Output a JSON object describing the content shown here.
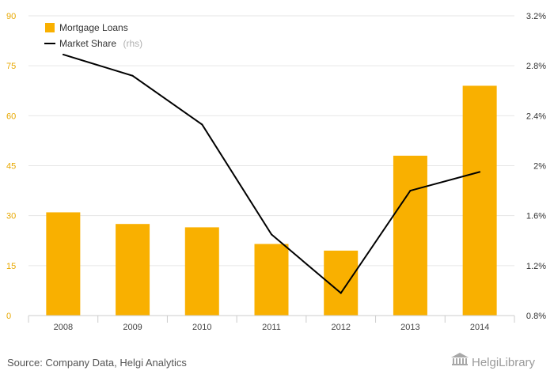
{
  "chart_data": {
    "type": "bar",
    "categories": [
      "2008",
      "2009",
      "2010",
      "2011",
      "2012",
      "2013",
      "2014"
    ],
    "series": [
      {
        "name": "Mortgage Loans",
        "type": "bar",
        "axis": "left",
        "color": "#f9b000",
        "values": [
          31,
          27.5,
          26.5,
          21.5,
          19.5,
          48,
          69
        ]
      },
      {
        "name": "Market Share",
        "type": "line",
        "axis": "right",
        "color": "#000000",
        "values": [
          2.89,
          2.72,
          2.33,
          1.45,
          0.98,
          1.8,
          1.95
        ]
      }
    ],
    "left_axis": {
      "min": 0,
      "max": 90,
      "ticks": [
        0,
        15,
        30,
        45,
        60,
        75,
        90
      ],
      "tick_labels": [
        "0",
        "15",
        "30",
        "45",
        "60",
        "75",
        "90"
      ]
    },
    "right_axis": {
      "min": 0.8,
      "max": 3.2,
      "ticks": [
        0.8,
        1.2,
        1.6,
        2.0,
        2.4,
        2.8,
        3.2
      ],
      "tick_labels": [
        "0.8%",
        "1.2%",
        "1.6%",
        "2%",
        "2.4%",
        "2.8%",
        "3.2%"
      ]
    },
    "legend": {
      "placement": "top-left",
      "items": [
        {
          "label": "Mortgage Loans",
          "suffix": "",
          "kind": "bar",
          "color": "#f9b000"
        },
        {
          "label": "Market Share",
          "suffix": "(rhs)",
          "kind": "line",
          "color": "#000000"
        }
      ]
    },
    "grid": true,
    "title": "",
    "xlabel": "",
    "ylabel": ""
  },
  "footer": {
    "source": "Source: Company Data, Helgi Analytics",
    "logo": "HelgiLibrary"
  }
}
